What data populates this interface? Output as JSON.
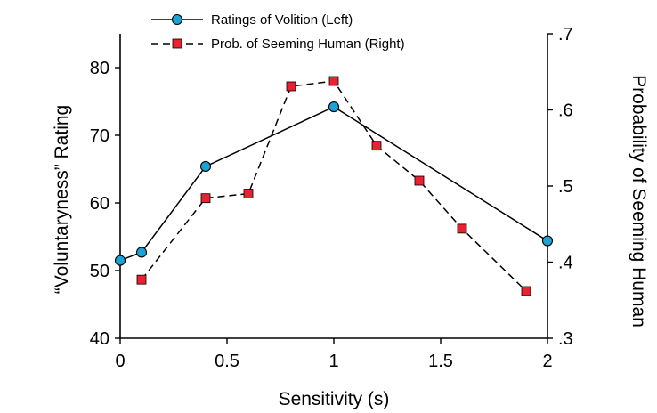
{
  "chart_data": {
    "type": "line",
    "xlabel": "Sensitivity (s)",
    "ylabel_left": "“Voluntaryness” Rating",
    "ylabel_right": "Probability of Seeming Human",
    "xlim": [
      0,
      2
    ],
    "ylim_left": [
      40,
      85
    ],
    "ylim_right": [
      0.3,
      0.7
    ],
    "x_ticks": [
      0,
      0.5,
      1,
      1.5,
      2
    ],
    "x_tick_labels": [
      "0",
      "0.5",
      "1",
      "1.5",
      "2"
    ],
    "y_left_ticks": [
      40,
      50,
      60,
      70,
      80
    ],
    "y_left_tick_labels": [
      "40",
      "50",
      "60",
      "70",
      "80"
    ],
    "y_right_ticks": [
      0.3,
      0.4,
      0.5,
      0.6,
      0.7
    ],
    "y_right_tick_labels": [
      ".3",
      ".4",
      ".5",
      ".6",
      ".7"
    ],
    "grid": false,
    "legend_position": "top-center",
    "series": [
      {
        "name": "Ratings of Volition (Left)",
        "axis": "left",
        "line_style": "solid",
        "marker": "circle",
        "color": "#1ba3d6",
        "x": [
          0,
          0.1,
          0.4,
          1,
          2
        ],
        "y": [
          51.5,
          52.7,
          65.4,
          74.2,
          54.4
        ]
      },
      {
        "name": "Prob. of Seeming Human (Right)",
        "axis": "right",
        "line_style": "dashed",
        "marker": "square",
        "color": "#e8232f",
        "x": [
          0.1,
          0.4,
          0.6,
          0.8,
          1,
          1.2,
          1.4,
          1.6,
          1.9
        ],
        "y": [
          0.377,
          0.484,
          0.49,
          0.631,
          0.638,
          0.553,
          0.507,
          0.444,
          0.362
        ]
      }
    ]
  }
}
